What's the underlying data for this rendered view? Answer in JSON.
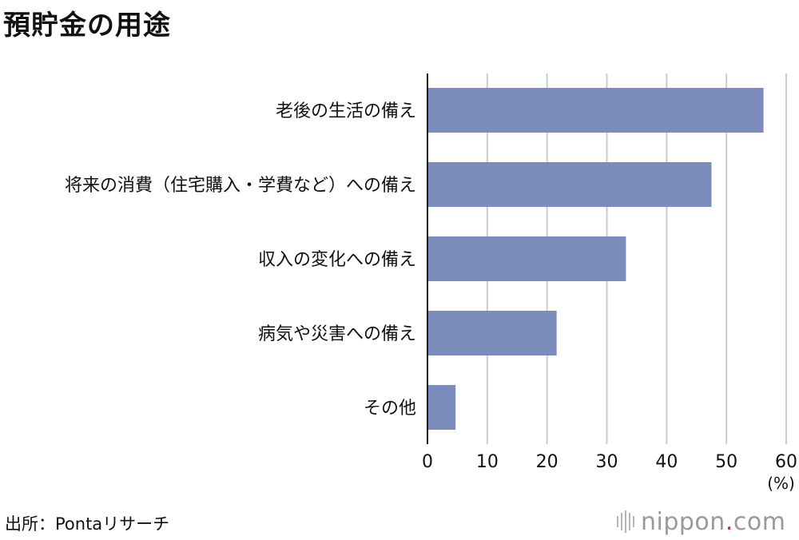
{
  "title": "預貯金の用途",
  "source": "出所：Pontaリサーチ",
  "logo": {
    "name": "nippon",
    "dot": ".",
    "tld": "com"
  },
  "colors": {
    "bar": "#7b8cbc",
    "grid": "#cccccc",
    "axis": "#111111"
  },
  "chart_data": {
    "type": "bar",
    "orientation": "horizontal",
    "categories": [
      "老後の生活の備え",
      "将来の消費（住宅購入・学費など）への備え",
      "収入の変化への備え",
      "病気や災害への備え",
      "その他"
    ],
    "values": [
      56.2,
      47.5,
      33.2,
      21.6,
      4.7
    ],
    "xlim": [
      0,
      60
    ],
    "xticks": [
      0,
      10,
      20,
      30,
      40,
      50,
      60
    ],
    "xunit": "(%)",
    "grid": true
  }
}
